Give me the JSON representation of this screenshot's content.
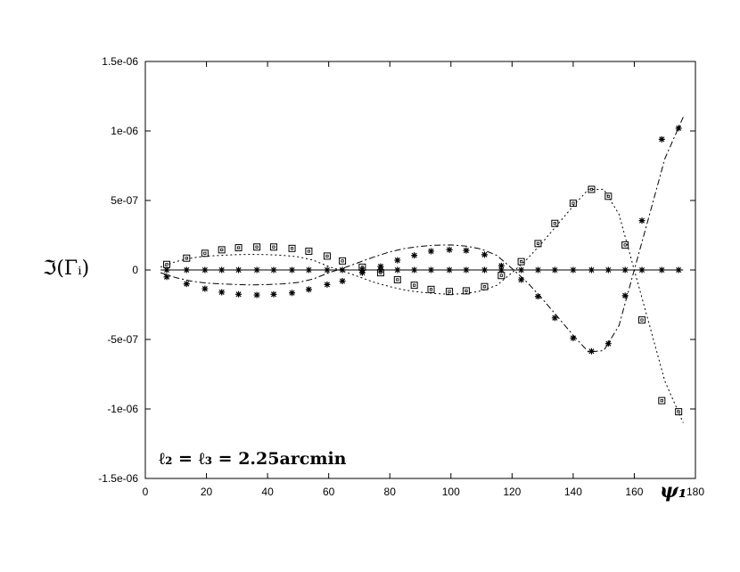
{
  "chart_data": {
    "type": "scatter",
    "title": "",
    "xlabel": "ψ₁",
    "ylabel": "ℑ(Γᵢ)",
    "annotation": "ℓ₂ = ℓ₃ = 2.25arcmin",
    "xlim": [
      0,
      180
    ],
    "ylim": [
      -1.5e-06,
      1.5e-06
    ],
    "xticks": [
      0,
      20,
      40,
      60,
      80,
      100,
      120,
      140,
      160,
      180
    ],
    "xtick_labels": [
      "0",
      "20",
      "40",
      "60",
      "80",
      "100",
      "120",
      "140",
      "160",
      "180"
    ],
    "yticks": [
      -1.5e-06,
      -1e-06,
      -5e-07,
      0,
      5e-07,
      1e-06,
      1.5e-06
    ],
    "ytick_labels": [
      "-1.5e-06",
      "-1e-06",
      "-5e-07",
      "0",
      "5e-07",
      "1e-06",
      "1.5e-06"
    ],
    "x": [
      7,
      13.5,
      19.5,
      25,
      30.5,
      36.5,
      42,
      48,
      53.5,
      59.5,
      64.5,
      71,
      77,
      82.5,
      88,
      93.5,
      99.5,
      105,
      111,
      116.5,
      123,
      128.5,
      134,
      140,
      146,
      151.5,
      157,
      162.5,
      169,
      174.5
    ],
    "series": [
      {
        "marker": "square",
        "values": [
          4e-08,
          8.5e-08,
          1.2e-07,
          1.45e-07,
          1.6e-07,
          1.65e-07,
          1.65e-07,
          1.55e-07,
          1.35e-07,
          1e-07,
          6.5e-08,
          2e-08,
          -2e-08,
          -7e-08,
          -1.1e-07,
          -1.4e-07,
          -1.55e-07,
          -1.5e-07,
          -1.2e-07,
          -4e-08,
          6e-08,
          1.9e-07,
          3.35e-07,
          4.8e-07,
          5.8e-07,
          5.3e-07,
          1.8e-07,
          -3.6e-07,
          -9.4e-07,
          -1.02e-06
        ]
      },
      {
        "marker": "asterisk",
        "values": [
          -5e-08,
          -1e-07,
          -1.35e-07,
          -1.6e-07,
          -1.75e-07,
          -1.8e-07,
          -1.75e-07,
          -1.65e-07,
          -1.4e-07,
          -1.05e-07,
          -8e-08,
          -2e-08,
          2.5e-08,
          7e-08,
          1.05e-07,
          1.35e-07,
          1.45e-07,
          1.4e-07,
          1.1e-07,
          3e-08,
          -7e-08,
          -1.9e-07,
          -3.45e-07,
          -4.9e-07,
          -5.85e-07,
          -5.3e-07,
          -1.85e-07,
          3.55e-07,
          9.4e-07,
          1.02e-06
        ]
      },
      {
        "marker": "asterisk",
        "values": [
          0,
          0,
          0,
          0,
          0,
          0,
          0,
          0,
          0,
          0,
          0,
          0,
          0,
          0,
          0,
          0,
          0,
          0,
          0,
          0,
          0,
          0,
          0,
          0,
          0,
          0,
          0,
          0,
          0,
          0
        ]
      }
    ],
    "curves": [
      {
        "style": "dotted",
        "x": [
          5,
          10,
          15,
          20,
          25,
          30,
          35,
          40,
          45,
          50,
          55,
          60,
          65,
          70,
          75,
          80,
          85,
          90,
          95,
          100,
          105,
          110,
          115,
          120,
          125,
          130,
          135,
          140,
          145,
          150,
          155,
          160,
          165,
          170,
          176
        ],
        "y": [
          2e-08,
          6e-08,
          8.5e-08,
          1e-07,
          1.05e-07,
          1.1e-07,
          1.12e-07,
          1.1e-07,
          1.05e-07,
          9.5e-08,
          7e-08,
          2.5e-08,
          -1e-08,
          -5e-08,
          -9e-08,
          -1.2e-07,
          -1.45e-07,
          -1.6e-07,
          -1.7e-07,
          -1.75e-07,
          -1.7e-07,
          -1.5e-07,
          -1.1e-07,
          -2e-08,
          8e-08,
          2e-07,
          3.3e-07,
          4.6e-07,
          5.8e-07,
          5.8e-07,
          4e-07,
          0.0,
          -4e-07,
          -8e-07,
          -1.1e-06
        ]
      },
      {
        "style": "dash-dot",
        "x": [
          5,
          10,
          15,
          20,
          25,
          30,
          35,
          40,
          45,
          50,
          55,
          60,
          65,
          70,
          75,
          80,
          85,
          90,
          95,
          100,
          105,
          110,
          115,
          120,
          125,
          130,
          135,
          140,
          145,
          150,
          155,
          160,
          165,
          170,
          176
        ],
        "y": [
          -2e-08,
          -5.5e-08,
          -8e-08,
          -9.5e-08,
          -1e-07,
          -1.05e-07,
          -1.08e-07,
          -1.05e-07,
          -1e-07,
          -9e-08,
          -6.5e-08,
          -2e-08,
          1.5e-08,
          5.5e-08,
          9.5e-08,
          1.3e-07,
          1.55e-07,
          1.7e-07,
          1.78e-07,
          1.8e-07,
          1.72e-07,
          1.5e-07,
          1.05e-07,
          1e-08,
          -9e-08,
          -2.1e-07,
          -3.4e-07,
          -4.7e-07,
          -5.9e-07,
          -5.8e-07,
          -4e-07,
          0.0,
          4e-07,
          8e-07,
          1.1e-06
        ]
      },
      {
        "style": "solid",
        "x": [
          5,
          176
        ],
        "y": [
          0,
          0
        ]
      }
    ],
    "grid": false,
    "legend": "none"
  }
}
